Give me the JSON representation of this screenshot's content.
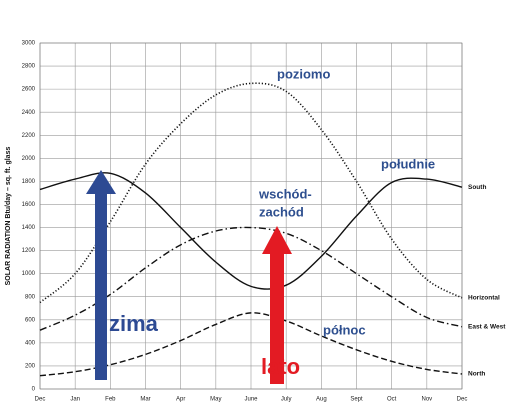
{
  "chart_data": {
    "type": "line",
    "y_label": "SOLAR RADIATION  Btu/day – sq. ft. glass",
    "categories": [
      "Dec",
      "Jan",
      "Feb",
      "Mar",
      "Apr",
      "May",
      "June",
      "July",
      "Aug",
      "Sept",
      "Oct",
      "Nov",
      "Dec"
    ],
    "series": [
      {
        "name": "South",
        "color": "#111111",
        "dash": "solid",
        "values": [
          1730,
          1820,
          1870,
          1700,
          1400,
          1100,
          890,
          900,
          1150,
          1500,
          1790,
          1820,
          1750
        ]
      },
      {
        "name": "Horizontal",
        "color": "#111111",
        "dash": "dotted",
        "values": [
          750,
          1000,
          1450,
          1950,
          2300,
          2550,
          2650,
          2580,
          2250,
          1800,
          1300,
          950,
          790
        ]
      },
      {
        "name": "East & West",
        "color": "#111111",
        "dash": "dashdot",
        "values": [
          510,
          640,
          820,
          1050,
          1250,
          1370,
          1400,
          1350,
          1200,
          1000,
          800,
          620,
          540
        ]
      },
      {
        "name": "North",
        "color": "#111111",
        "dash": "dashed",
        "values": [
          115,
          150,
          210,
          300,
          420,
          560,
          660,
          590,
          460,
          340,
          240,
          170,
          130
        ]
      }
    ],
    "annotations": [
      "poziomo",
      "południe",
      "wschód-",
      "zachód",
      "północ",
      "zima",
      "lato"
    ],
    "ylim": [
      0,
      3000
    ],
    "yticks": [
      0,
      200,
      400,
      600,
      800,
      1000,
      1200,
      1400,
      1600,
      1800,
      2000,
      2200,
      2400,
      2600,
      2800,
      3000
    ],
    "grid": true
  }
}
